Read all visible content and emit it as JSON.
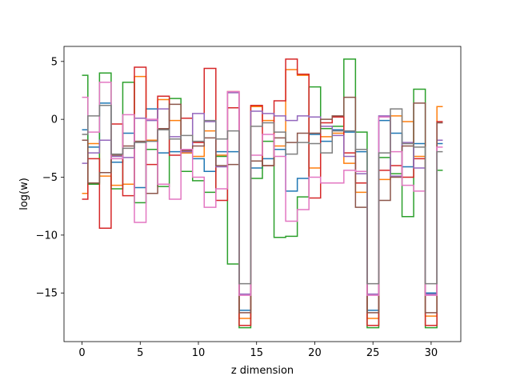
{
  "chart_data": {
    "type": "line",
    "step": "mid",
    "xlabel": "z dimension",
    "ylabel": "log(w)",
    "xlim": [
      -1.55,
      32.55
    ],
    "ylim": [
      -19.2,
      6.3
    ],
    "xticks": [
      0,
      5,
      10,
      15,
      20,
      25,
      30
    ],
    "yticks": [
      5,
      0,
      -5,
      -10,
      -15
    ],
    "x": [
      0,
      1,
      2,
      3,
      4,
      5,
      6,
      7,
      8,
      9,
      10,
      11,
      12,
      13,
      14,
      15,
      16,
      17,
      18,
      19,
      20,
      21,
      22,
      23,
      24,
      25,
      26,
      27,
      28,
      29,
      30,
      31
    ],
    "series": [
      {
        "color": "#1f77b4",
        "values": [
          -0.9,
          -2.4,
          1.4,
          -3.7,
          -1.2,
          -5.9,
          0.9,
          -2.9,
          -2.8,
          -2.9,
          -3.4,
          -4.5,
          -2.8,
          -2.8,
          -16.5,
          -4.2,
          -3.4,
          -2.6,
          -6.2,
          -5.1,
          -1.3,
          -1.9,
          -0.9,
          -1.1,
          -2.8,
          -16.5,
          -0.1,
          -1.2,
          -4.1,
          -2.1,
          -15.0,
          -2.1
        ]
      },
      {
        "color": "#ff7f0e",
        "values": [
          -6.4,
          -2.1,
          -4.9,
          -5.7,
          -5.6,
          3.7,
          -1.8,
          1.7,
          -0.1,
          -2.9,
          -3.2,
          -1.0,
          -3.1,
          2.4,
          -17.2,
          1.1,
          -0.1,
          -2.3,
          4.3,
          3.8,
          -4.2,
          -1.5,
          -1.2,
          -3.8,
          -6.3,
          -17.2,
          -5.2,
          0.3,
          -0.2,
          -3.2,
          -17.0,
          1.1
        ]
      },
      {
        "color": "#2ca02c",
        "values": [
          3.8,
          -5.6,
          4.0,
          -6.0,
          3.2,
          -7.2,
          -2.6,
          -5.8,
          1.8,
          -4.5,
          -5.3,
          -6.3,
          -3.2,
          -12.5,
          -18.0,
          -5.1,
          -1.9,
          -10.2,
          -10.1,
          -6.7,
          2.8,
          -0.8,
          -0.6,
          5.2,
          -1.1,
          -18.0,
          -3.3,
          -4.7,
          -8.4,
          2.6,
          -18.0,
          -4.4
        ]
      },
      {
        "color": "#d62728",
        "values": [
          -6.9,
          -3.4,
          -9.4,
          -0.4,
          -6.6,
          4.5,
          -3.9,
          2.0,
          -3.1,
          0.1,
          -2.0,
          4.4,
          -7.0,
          1.0,
          -17.8,
          1.2,
          -4.0,
          1.6,
          5.2,
          3.9,
          -6.8,
          -0.3,
          0.2,
          -2.9,
          -5.5,
          -17.8,
          -4.4,
          -4.0,
          -5.0,
          -3.4,
          -17.8,
          -0.2
        ]
      },
      {
        "color": "#9467bd",
        "values": [
          -3.8,
          -2.9,
          -1.8,
          -3.2,
          -3.3,
          0.1,
          -0.1,
          0.9,
          -1.5,
          -2.8,
          0.5,
          -0.2,
          -4.1,
          2.3,
          -15.1,
          0.7,
          0.5,
          0.3,
          -0.1,
          0.3,
          0.2,
          -0.6,
          -1.4,
          -3.2,
          -4.7,
          -15.1,
          0.3,
          -4.9,
          -2.0,
          -4.2,
          -15.1,
          -1.8
        ]
      },
      {
        "color": "#8c564b",
        "values": [
          -1.8,
          -5.5,
          -4.6,
          -3.1,
          -2.3,
          -1.9,
          -6.4,
          -0.8,
          1.3,
          -2.7,
          -2.3,
          -1.6,
          -4.0,
          -3.9,
          -16.7,
          -3.6,
          -4.0,
          -1.6,
          -2.0,
          -1.2,
          -1.2,
          0.0,
          0.3,
          1.9,
          -7.6,
          -16.7,
          -7.0,
          -5.0,
          -2.3,
          1.4,
          -16.7,
          -0.3
        ]
      },
      {
        "color": "#e377c2",
        "values": [
          1.9,
          -1.1,
          3.2,
          -3.4,
          0.4,
          -8.9,
          0.0,
          -5.6,
          -6.9,
          -2.6,
          -5.0,
          -7.6,
          -6.0,
          2.4,
          -15.2,
          -3.1,
          -1.3,
          -3.2,
          -8.8,
          -7.8,
          -5.0,
          -5.5,
          -5.5,
          -4.4,
          -4.5,
          -15.2,
          0.2,
          -2.8,
          -5.7,
          -6.2,
          -15.2,
          -2.4
        ]
      },
      {
        "color": "#7f7f7f",
        "values": [
          -1.3,
          0.3,
          1.2,
          -3.0,
          -2.5,
          -2.0,
          -1.9,
          -0.9,
          -1.7,
          -1.4,
          -1.9,
          -0.1,
          -1.7,
          -1.0,
          -14.2,
          -0.6,
          -0.3,
          -1.1,
          -3.0,
          -2.0,
          -2.1,
          -2.9,
          -1.0,
          -1.0,
          -2.6,
          -14.2,
          -2.9,
          0.9,
          -2.1,
          -2.4,
          -14.2,
          -2.8
        ]
      }
    ]
  }
}
